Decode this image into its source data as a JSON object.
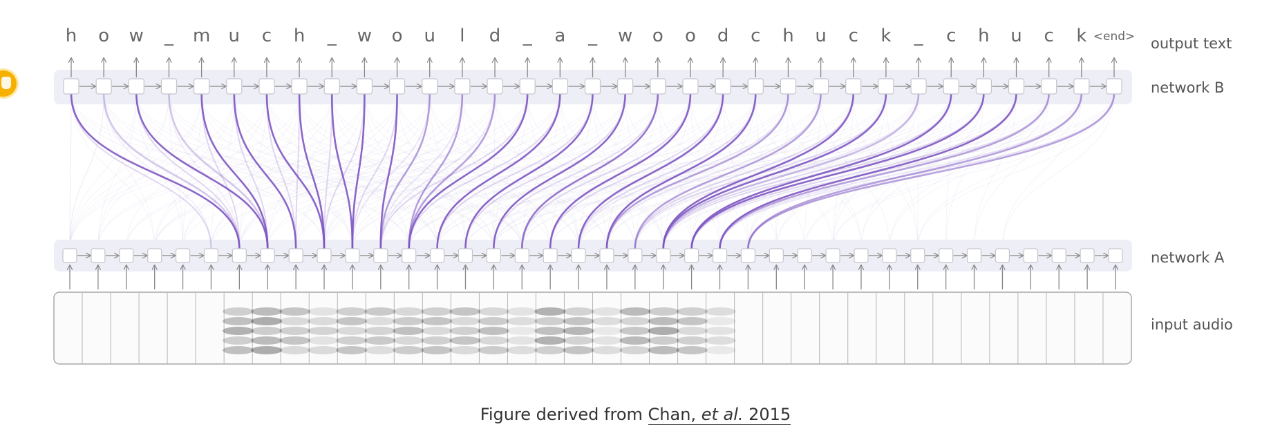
{
  "diagram": {
    "output_chars": [
      "h",
      "o",
      "w",
      "_",
      "m",
      "u",
      "c",
      "h",
      "_",
      "w",
      "o",
      "u",
      "l",
      "d",
      "_",
      "a",
      "_",
      "w",
      "o",
      "o",
      "d",
      "c",
      "h",
      "u",
      "c",
      "k",
      "_",
      "c",
      "h",
      "u",
      "c",
      "k",
      "<end>"
    ],
    "labels": {
      "output": "output text",
      "network_b": "network B",
      "network_a": "network A",
      "input": "input audio"
    },
    "input_frame_count": 38,
    "attention_links": [
      {
        "b": 0,
        "a": 6,
        "w": 0.9
      },
      {
        "b": 1,
        "a": 6,
        "w": 0.3
      },
      {
        "b": 2,
        "a": 7,
        "w": 0.9
      },
      {
        "b": 3,
        "a": 7,
        "w": 0.3
      },
      {
        "b": 4,
        "a": 7,
        "w": 0.9
      },
      {
        "b": 5,
        "a": 8,
        "w": 0.9
      },
      {
        "b": 6,
        "a": 9,
        "w": 0.9
      },
      {
        "b": 7,
        "a": 9,
        "w": 0.9
      },
      {
        "b": 8,
        "a": 10,
        "w": 0.9
      },
      {
        "b": 9,
        "a": 10,
        "w": 0.9
      },
      {
        "b": 10,
        "a": 11,
        "w": 0.9
      },
      {
        "b": 11,
        "a": 11,
        "w": 0.55
      },
      {
        "b": 12,
        "a": 12,
        "w": 0.55
      },
      {
        "b": 13,
        "a": 12,
        "w": 0.55
      },
      {
        "b": 14,
        "a": 12,
        "w": 0.9
      },
      {
        "b": 15,
        "a": 13,
        "w": 0.9
      },
      {
        "b": 16,
        "a": 14,
        "w": 0.9
      },
      {
        "b": 17,
        "a": 15,
        "w": 0.9
      },
      {
        "b": 18,
        "a": 16,
        "w": 0.8
      },
      {
        "b": 19,
        "a": 17,
        "w": 0.9
      },
      {
        "b": 20,
        "a": 18,
        "w": 0.9
      },
      {
        "b": 21,
        "a": 19,
        "w": 0.9
      },
      {
        "b": 22,
        "a": 19,
        "w": 0.55
      },
      {
        "b": 23,
        "a": 20,
        "w": 0.55
      },
      {
        "b": 24,
        "a": 21,
        "w": 0.9
      },
      {
        "b": 25,
        "a": 21,
        "w": 0.9
      },
      {
        "b": 26,
        "a": 21,
        "w": 0.4
      },
      {
        "b": 27,
        "a": 22,
        "w": 0.9
      },
      {
        "b": 28,
        "a": 22,
        "w": 0.9
      },
      {
        "b": 29,
        "a": 23,
        "w": 0.9
      },
      {
        "b": 30,
        "a": 23,
        "w": 0.55
      },
      {
        "b": 31,
        "a": 24,
        "w": 0.55
      },
      {
        "b": 32,
        "a": 24,
        "w": 0.55
      }
    ],
    "line_color": "#7e57c2",
    "node_color": "#ffffff",
    "band_color": "#eeeef6",
    "speech_blobs": [
      {
        "f": 6,
        "i": 0.75
      },
      {
        "f": 7,
        "i": 0.8
      },
      {
        "f": 8,
        "i": 0.55
      },
      {
        "f": 9,
        "i": 0.4
      },
      {
        "f": 10,
        "i": 0.55
      },
      {
        "f": 11,
        "i": 0.5
      },
      {
        "f": 12,
        "i": 0.6
      },
      {
        "f": 13,
        "i": 0.55
      },
      {
        "f": 14,
        "i": 0.55
      },
      {
        "f": 15,
        "i": 0.6
      },
      {
        "f": 16,
        "i": 0.3
      },
      {
        "f": 17,
        "i": 0.75
      },
      {
        "f": 18,
        "i": 0.7
      },
      {
        "f": 19,
        "i": 0.3
      },
      {
        "f": 20,
        "i": 0.65
      },
      {
        "f": 21,
        "i": 0.8
      },
      {
        "f": 22,
        "i": 0.55
      },
      {
        "f": 23,
        "i": 0.3
      }
    ]
  },
  "caption": {
    "prefix": "Figure derived from ",
    "link_author": "Chan, ",
    "link_etal": "et al.",
    "link_year": " 2015"
  }
}
